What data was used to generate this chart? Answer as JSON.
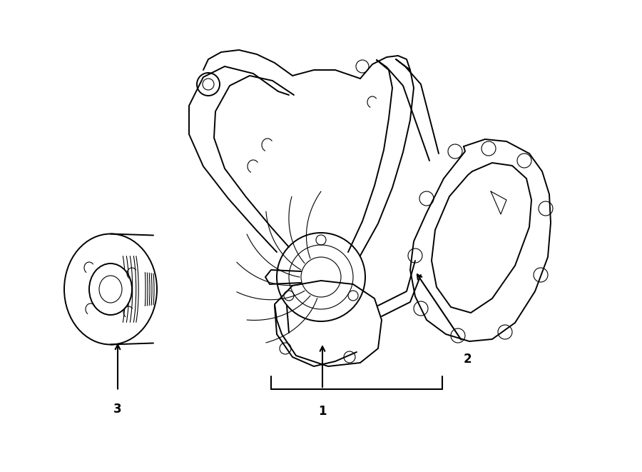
{
  "background_color": "#ffffff",
  "line_color": "#000000",
  "lw": 1.4,
  "lw_thin": 0.8,
  "figsize": [
    9.0,
    6.61
  ],
  "dpi": 100,
  "label_fontsize": 12
}
